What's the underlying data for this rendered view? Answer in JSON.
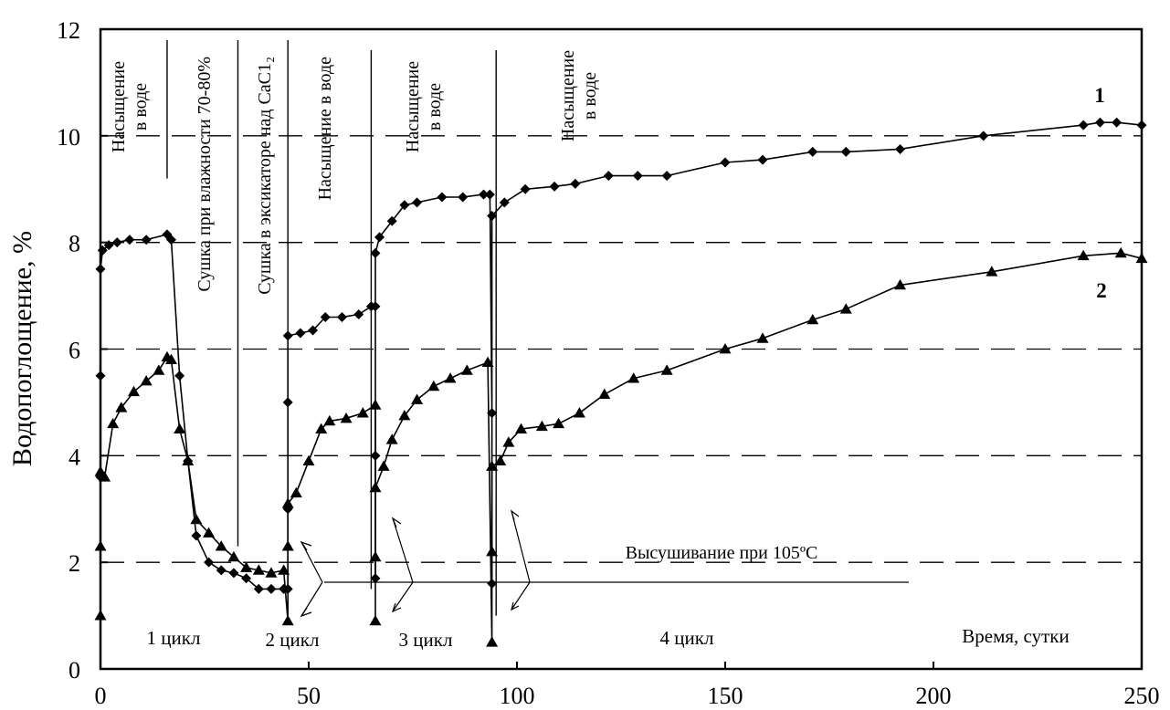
{
  "chart_data": {
    "type": "line",
    "title": "",
    "xlabel": "",
    "ylabel": "Водопоглощение, %",
    "xlim": [
      0,
      250
    ],
    "ylim": [
      0,
      12
    ],
    "x_ticks": [
      "0",
      "50",
      "100",
      "150",
      "200",
      "250"
    ],
    "y_ticks": [
      "0",
      "2",
      "4",
      "6",
      "8",
      "10",
      "12"
    ],
    "dashed_reference_lines_y": [
      2,
      4,
      6,
      8,
      10
    ],
    "phase_separators_x": [
      16,
      33,
      45,
      65,
      95
    ],
    "phase_labels": [
      {
        "text": "Насыщение\nв воде"
      },
      {
        "text": "Сушка при влажности 70-80%"
      },
      {
        "text": "Сушка в эксикаторе над СаС1₂"
      },
      {
        "text": "Насыщение в воде"
      },
      {
        "text": "Насыщение\nв воде"
      },
      {
        "text": "Насыщение\nв воде"
      }
    ],
    "annotations": {
      "drying": "Высушивание при 105ºС",
      "time_axis": "Время, сутки",
      "cycles": [
        "1 цикл",
        "2 цикл",
        "3 цикл",
        "4 цикл"
      ]
    },
    "series": [
      {
        "name": "1",
        "marker": "diamond",
        "points": [
          [
            0,
            3.6
          ],
          [
            0,
            5.5
          ],
          [
            0,
            7.5
          ],
          [
            0.5,
            7.85
          ],
          [
            2,
            7.95
          ],
          [
            4,
            8.0
          ],
          [
            7,
            8.05
          ],
          [
            11,
            8.05
          ],
          [
            16,
            8.15
          ],
          [
            17,
            8.05
          ],
          [
            19,
            5.5
          ],
          [
            21,
            3.9
          ],
          [
            23,
            2.5
          ],
          [
            26,
            2.0
          ],
          [
            29,
            1.85
          ],
          [
            32,
            1.8
          ],
          [
            35,
            1.7
          ],
          [
            38,
            1.5
          ],
          [
            41,
            1.5
          ],
          [
            44,
            1.5
          ],
          [
            45,
            1.5
          ],
          [
            45,
            3.0
          ],
          [
            45,
            5.0
          ],
          [
            45,
            6.25
          ],
          [
            48,
            6.3
          ],
          [
            51,
            6.35
          ],
          [
            54,
            6.6
          ],
          [
            58,
            6.6
          ],
          [
            62,
            6.65
          ],
          [
            65,
            6.8
          ],
          [
            66,
            6.8
          ],
          [
            66,
            1.7
          ],
          [
            66,
            4.0
          ],
          [
            66,
            7.8
          ],
          [
            67,
            8.1
          ],
          [
            70,
            8.4
          ],
          [
            73,
            8.7
          ],
          [
            76,
            8.75
          ],
          [
            82,
            8.85
          ],
          [
            87,
            8.85
          ],
          [
            92,
            8.9
          ],
          [
            93.5,
            8.9
          ],
          [
            94,
            4.8
          ],
          [
            94,
            1.6
          ],
          [
            94,
            8.5
          ],
          [
            97,
            8.75
          ],
          [
            102,
            9.0
          ],
          [
            109,
            9.05
          ],
          [
            114,
            9.1
          ],
          [
            122,
            9.25
          ],
          [
            129,
            9.25
          ],
          [
            136,
            9.25
          ],
          [
            150,
            9.5
          ],
          [
            159,
            9.55
          ],
          [
            171,
            9.7
          ],
          [
            179,
            9.7
          ],
          [
            192,
            9.75
          ],
          [
            212,
            10.0
          ],
          [
            236,
            10.2
          ],
          [
            240,
            10.25
          ],
          [
            244,
            10.25
          ],
          [
            250,
            10.2
          ]
        ]
      },
      {
        "name": "2",
        "marker": "triangle",
        "points": [
          [
            0,
            1.0
          ],
          [
            0,
            2.3
          ],
          [
            0,
            3.7
          ],
          [
            1,
            3.6
          ],
          [
            3,
            4.6
          ],
          [
            5,
            4.9
          ],
          [
            8,
            5.2
          ],
          [
            11,
            5.4
          ],
          [
            14,
            5.6
          ],
          [
            16,
            5.85
          ],
          [
            17,
            5.8
          ],
          [
            19,
            4.5
          ],
          [
            21,
            3.9
          ],
          [
            23,
            2.8
          ],
          [
            26,
            2.55
          ],
          [
            29,
            2.3
          ],
          [
            32,
            2.1
          ],
          [
            35,
            1.9
          ],
          [
            38,
            1.85
          ],
          [
            41,
            1.8
          ],
          [
            44,
            1.85
          ],
          [
            45,
            0.9
          ],
          [
            45,
            2.3
          ],
          [
            45,
            3.1
          ],
          [
            47,
            3.3
          ],
          [
            50,
            3.9
          ],
          [
            53,
            4.5
          ],
          [
            55,
            4.65
          ],
          [
            59,
            4.7
          ],
          [
            63,
            4.8
          ],
          [
            66,
            4.95
          ],
          [
            66,
            0.9
          ],
          [
            66,
            2.1
          ],
          [
            66,
            3.4
          ],
          [
            68,
            3.8
          ],
          [
            70,
            4.3
          ],
          [
            73,
            4.75
          ],
          [
            76,
            5.05
          ],
          [
            80,
            5.3
          ],
          [
            84,
            5.45
          ],
          [
            88,
            5.6
          ],
          [
            93,
            5.75
          ],
          [
            94,
            0.5
          ],
          [
            94,
            2.2
          ],
          [
            94,
            3.8
          ],
          [
            96,
            3.9
          ],
          [
            98,
            4.25
          ],
          [
            101,
            4.5
          ],
          [
            106,
            4.55
          ],
          [
            110,
            4.6
          ],
          [
            115,
            4.8
          ],
          [
            121,
            5.15
          ],
          [
            128,
            5.45
          ],
          [
            136,
            5.6
          ],
          [
            150,
            6.0
          ],
          [
            159,
            6.2
          ],
          [
            171,
            6.55
          ],
          [
            179,
            6.75
          ],
          [
            192,
            7.2
          ],
          [
            214,
            7.45
          ],
          [
            236,
            7.75
          ],
          [
            245,
            7.8
          ],
          [
            250,
            7.7
          ]
        ]
      }
    ]
  }
}
